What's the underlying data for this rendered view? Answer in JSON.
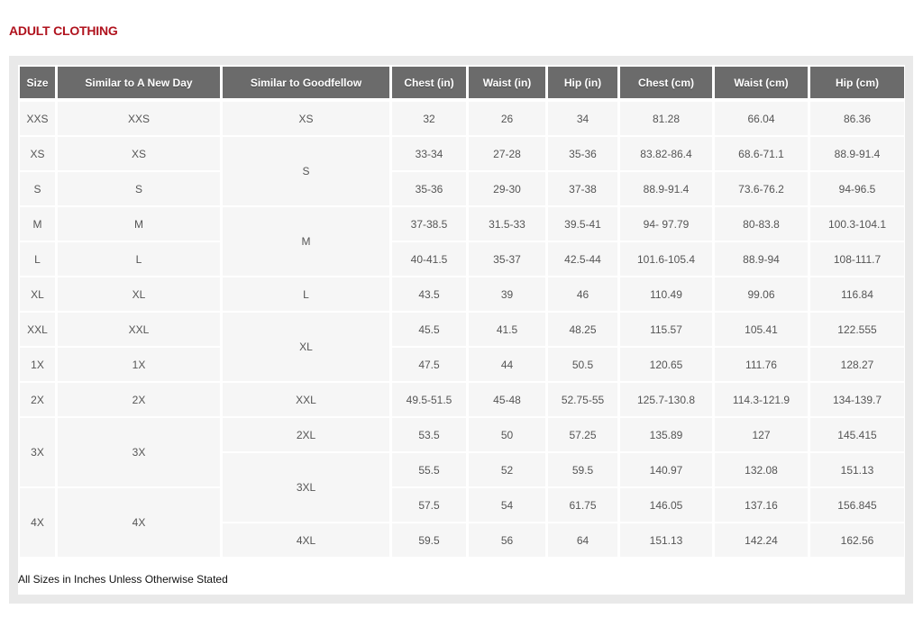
{
  "title": "ADULT CLOTHING",
  "headers": [
    "Size",
    "Similar to A New Day",
    "Similar to Goodfellow",
    "Chest (in)",
    "Waist (in)",
    "Hip (in)",
    "Chest (cm)",
    "Waist (cm)",
    "Hip (cm)"
  ],
  "size": [
    {
      "label": "XXS",
      "span": 1
    },
    {
      "label": "XS",
      "span": 1
    },
    {
      "label": "S",
      "span": 1
    },
    {
      "label": "M",
      "span": 1
    },
    {
      "label": "L",
      "span": 1
    },
    {
      "label": "XL",
      "span": 1
    },
    {
      "label": "XXL",
      "span": 1
    },
    {
      "label": "1X",
      "span": 1
    },
    {
      "label": "2X",
      "span": 1
    },
    {
      "label": "3X",
      "span": 2
    },
    {
      "label": "4X",
      "span": 2
    }
  ],
  "a_new_day": [
    {
      "label": "XXS",
      "span": 1
    },
    {
      "label": "XS",
      "span": 1
    },
    {
      "label": "S",
      "span": 1
    },
    {
      "label": "M",
      "span": 1
    },
    {
      "label": "L",
      "span": 1
    },
    {
      "label": "XL",
      "span": 1
    },
    {
      "label": "XXL",
      "span": 1
    },
    {
      "label": "1X",
      "span": 1
    },
    {
      "label": "2X",
      "span": 1
    },
    {
      "label": "3X",
      "span": 2
    },
    {
      "label": "4X",
      "span": 2
    }
  ],
  "goodfellow": [
    {
      "label": "XS",
      "span": 1
    },
    {
      "label": "S",
      "span": 2
    },
    {
      "label": "M",
      "span": 2
    },
    {
      "label": "L",
      "span": 1
    },
    {
      "label": "XL",
      "span": 2
    },
    {
      "label": "XXL",
      "span": 1
    },
    {
      "label": "2XL",
      "span": 1
    },
    {
      "label": "3XL",
      "span": 2
    },
    {
      "label": "4XL",
      "span": 1
    }
  ],
  "measurements": [
    [
      "32",
      "26",
      "34",
      "81.28",
      "66.04",
      "86.36"
    ],
    [
      "33-34",
      "27-28",
      "35-36",
      "83.82-86.4",
      "68.6-71.1",
      "88.9-91.4"
    ],
    [
      "35-36",
      "29-30",
      "37-38",
      "88.9-91.4",
      "73.6-76.2",
      "94-96.5"
    ],
    [
      "37-38.5",
      "31.5-33",
      "39.5-41",
      "94- 97.79",
      "80-83.8",
      "100.3-104.1"
    ],
    [
      "40-41.5",
      "35-37",
      "42.5-44",
      "101.6-105.4",
      "88.9-94",
      "108-111.7"
    ],
    [
      "43.5",
      "39",
      "46",
      "110.49",
      "99.06",
      "116.84"
    ],
    [
      "45.5",
      "41.5",
      "48.25",
      "115.57",
      "105.41",
      "122.555"
    ],
    [
      "47.5",
      "44",
      "50.5",
      "120.65",
      "111.76",
      "128.27"
    ],
    [
      "49.5-51.5",
      "45-48",
      "52.75-55",
      "125.7-130.8",
      "114.3-121.9",
      "134-139.7"
    ],
    [
      "53.5",
      "50",
      "57.25",
      "135.89",
      "127",
      "145.415"
    ],
    [
      "55.5",
      "52",
      "59.5",
      "140.97",
      "132.08",
      "151.13"
    ],
    [
      "57.5",
      "54",
      "61.75",
      "146.05",
      "137.16",
      "156.845"
    ],
    [
      "59.5",
      "56",
      "64",
      "151.13",
      "142.24",
      "162.56"
    ]
  ],
  "note": "All Sizes in Inches Unless Otherwise Stated",
  "colors": {
    "title": "#b0131e",
    "header_bg": "#6b6b6b",
    "cell_bg": "#f6f6f6"
  }
}
